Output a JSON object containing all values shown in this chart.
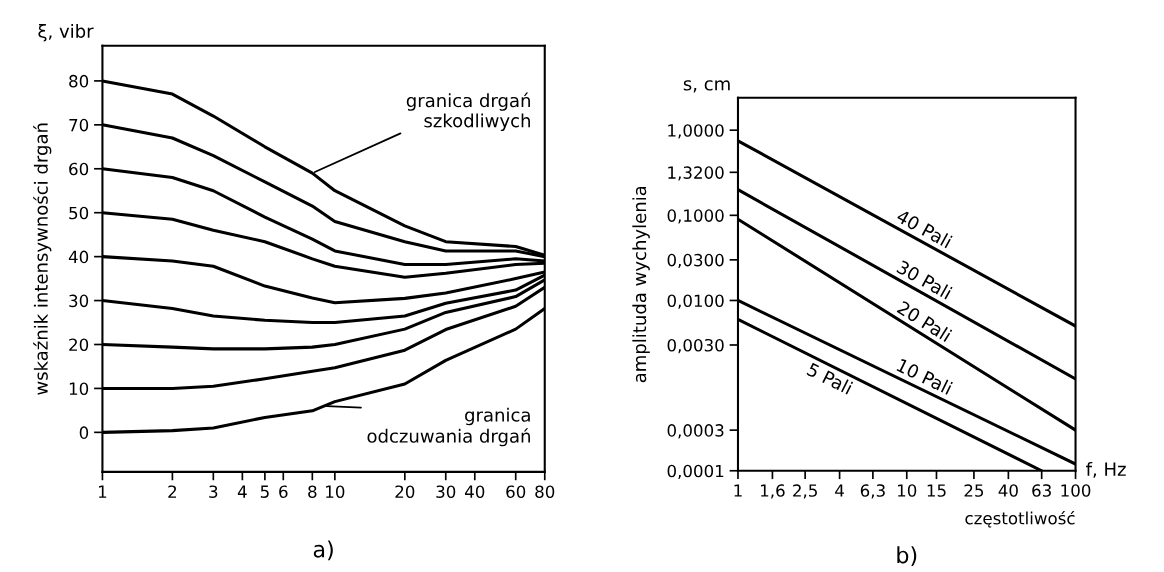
{
  "chart_data": [
    {
      "type": "line",
      "title": "a)",
      "ylabel": "wskaźnik intensywności drgań",
      "annotations": [
        "ξ, vibr",
        {
          "text": "granica drgań\nszkodliwych",
          "x": 8,
          "y": 59
        },
        {
          "text": "granica\nodczuwania drgań",
          "x": 9,
          "y": 6
        }
      ],
      "x": [
        1,
        2,
        3,
        5,
        8,
        10,
        20,
        30,
        60,
        80
      ],
      "series": [
        {
          "color": "#000000",
          "values": [
            80,
            77,
            72,
            65,
            59,
            55,
            47,
            43.4,
            42.3,
            40.3
          ]
        },
        {
          "color": "#000000",
          "values": [
            70,
            67,
            63,
            57,
            51.5,
            48,
            43.4,
            41.3,
            41.3,
            40
          ]
        },
        {
          "color": "#000000",
          "values": [
            60,
            58,
            55,
            49,
            44,
            41.3,
            38.2,
            38.2,
            39.5,
            39
          ]
        },
        {
          "color": "#000000",
          "values": [
            50,
            48.5,
            46,
            43.4,
            39.5,
            37.8,
            35.3,
            36.2,
            38.2,
            38.5
          ]
        },
        {
          "color": "#000000",
          "values": [
            40,
            39,
            37.8,
            33.3,
            30.6,
            29.5,
            30.5,
            31.7,
            35,
            36.5
          ]
        },
        {
          "color": "#000000",
          "values": [
            30,
            28.2,
            26.5,
            25.5,
            25,
            25,
            26.5,
            29.4,
            32.4,
            35.8
          ]
        },
        {
          "color": "#000000",
          "values": [
            20,
            19.4,
            19,
            19,
            19.4,
            20,
            23.5,
            27.3,
            30.9,
            34.7
          ]
        },
        {
          "color": "#000000",
          "values": [
            10,
            10,
            10.5,
            12.2,
            13.9,
            14.7,
            18.7,
            23.4,
            28.7,
            33
          ]
        },
        {
          "color": "#000000",
          "values": [
            0,
            0.4,
            1,
            3.4,
            4.9,
            7,
            11,
            16.4,
            23.5,
            28.2
          ]
        }
      ],
      "log": "x",
      "xlim": [
        1,
        80
      ],
      "ylim": [
        -9,
        88
      ],
      "xticks": [
        1,
        2,
        3,
        4,
        5,
        6,
        8,
        10,
        20,
        30,
        40,
        60,
        80
      ],
      "yticks": [
        0,
        10,
        20,
        30,
        40,
        50,
        60,
        70,
        80
      ],
      "grid": false,
      "legend": false
    },
    {
      "type": "line",
      "title": "b)",
      "xlabel": "częstotliwość",
      "ylabel": "amplituda wychylenia",
      "annotations": [
        "s, cm",
        "f, Hz"
      ],
      "series": [
        {
          "name": "40 Pali",
          "color": "#000000",
          "x": [
            1,
            100
          ],
          "values": [
            0.75,
            0.005
          ]
        },
        {
          "name": "30 Pali",
          "color": "#000000",
          "x": [
            1,
            100
          ],
          "values": [
            0.2,
            0.0012
          ]
        },
        {
          "name": "20 Pali",
          "color": "#000000",
          "x": [
            1,
            100
          ],
          "values": [
            0.09,
            0.0003
          ]
        },
        {
          "name": "10 Pali",
          "color": "#000000",
          "x": [
            1,
            100
          ],
          "values": [
            0.01,
            0.00012
          ]
        },
        {
          "name": "5 Pali",
          "color": "#000000",
          "x": [
            1,
            63
          ],
          "values": [
            0.006,
            0.0001
          ]
        }
      ],
      "log": "xy",
      "xlim": [
        1,
        100
      ],
      "ylim": [
        0.0001,
        2.4
      ],
      "xticks": [
        1,
        {
          "value": 1.6,
          "label": "1,6"
        },
        {
          "value": 2.5,
          "label": "2,5"
        },
        4,
        {
          "value": 6.3,
          "label": "6,3"
        },
        10,
        15,
        25,
        40,
        63,
        100
      ],
      "yticks": [
        {
          "value": 1,
          "label": "1,0000"
        },
        {
          "value": 0.32,
          "label": "1,3200"
        },
        {
          "value": 0.1,
          "label": "0,1000"
        },
        {
          "value": 0.03,
          "label": "0,0300"
        },
        {
          "value": 0.01,
          "label": "0,0100"
        },
        {
          "value": 0.003,
          "label": "0,0030"
        },
        {
          "value": 0.0003,
          "label": "0,0003"
        },
        {
          "value": 0.0001,
          "label": "0,0001"
        }
      ],
      "grid": false,
      "legend": false
    }
  ]
}
